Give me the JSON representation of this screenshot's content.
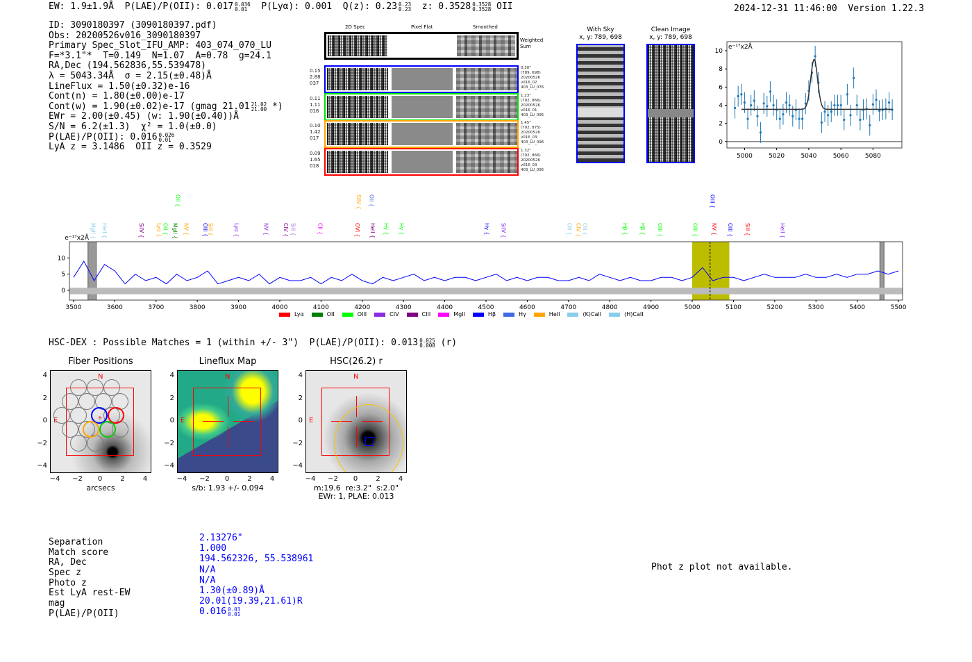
{
  "header": {
    "ew": "EW: 1.9±1.9Å",
    "plae_label": "P(LAE)/P(OII): 0.017",
    "plae_hi": "0.036",
    "plae_lo": "0.01",
    "plya": "P(Lyα): 0.001",
    "qz_label": "Q(z): 0.23",
    "qz_hi": "0.23",
    "qz_lo": "0.23",
    "z_label": "z: 0.3528",
    "z_hi": "0.3528",
    "z_lo": "0.3528",
    "z_line": "OII",
    "datetime": "2024-12-31 11:46:00",
    "version": "Version 1.22.3"
  },
  "info": {
    "lines": [
      "ID: 3090180397 (3090180397.pdf)",
      "Obs: 20200526v016_3090180397",
      "Primary Spec_Slot_IFU_AMP: 403_074_070_LU",
      "F=*3.1\"*  T=0.149  N=1.07  A=0.78  g=24.1",
      "RA,Dec (194.562836,55.539478)",
      "λ = 5043.34Å  σ = 2.15(±0.48)Å",
      "LineFlux = 1.50(±0.32)e-16",
      "Cont(n) = 1.80(±0.00)e-17"
    ],
    "contw": "Cont(w) = 1.90(±0.02)e-17 (gmag 21.01",
    "contw_hi": "21.02",
    "contw_lo": "21.00",
    "contw_end": " *)",
    "ewr": "EWr = 2.00(±0.45) (w: 1.90(±0.40))Å",
    "sn": "S/N = 6.2(±1.3)  χ² = 1.0(±0.0)",
    "plae": "P(LAE)/P(OII): 0.016",
    "plae_hi": "0.026",
    "plae_lo": "0.01",
    "z": "LyA z = 3.1486  OII z = 0.3529"
  },
  "spec2d": {
    "col_titles": [
      "2D Spec",
      "Pixel Flat",
      "Smoothed"
    ],
    "weighted_label": "Weighted\nSum",
    "fibers": [
      {
        "color": "#0000ff",
        "stats": "0.15\n2.88\n037",
        "meta": "0.30\"\n(789, 698)\n20200526\nv016_02\n403_LU_076"
      },
      {
        "color": "#00e000",
        "stats": "0.11\n1.11\n018",
        "meta": "1.23\"\n(792, 866)\n20200526\nv016_01\n403_LU_095"
      },
      {
        "color": "#ffa500",
        "stats": "0.10\n1.42\n017",
        "meta": "1.45\"\n(792, 875)\n20200526\nv016_03\n403_LU_096"
      },
      {
        "color": "#ff0000",
        "stats": "0.09\n1.65\n018",
        "meta": "1.32\"\n(792, 866)\n20200526\nv016_03\n403_LU_095"
      }
    ]
  },
  "cutouts": {
    "with_sky": {
      "title": "With Sky",
      "coords": "x, y: 789, 698"
    },
    "clean": {
      "title": "Clean Image",
      "coords": "x, y: 789, 698"
    }
  },
  "hsc": {
    "title": "HSC-DEX : Possible Matches = 1 (within +/- 3\")  P(LAE)/P(OII): 0.013",
    "hi": "0.025",
    "lo": "0.008",
    "band": "(r)",
    "ticks": [
      "−4",
      "−2",
      "0",
      "2",
      "4"
    ],
    "n_label": "N",
    "e_label": "E",
    "panels": [
      {
        "title": "Fiber Positions",
        "caption": "arcsecs"
      },
      {
        "title": "Lineflux Map",
        "caption": "s/b: 1.93 +/- 0.094"
      },
      {
        "title": "HSC(26.2) r",
        "caption": "m:19.6  re:3.2\"  s:2.0\"\nEWr: 1, PLAE: 0.013"
      }
    ]
  },
  "match": {
    "labels": [
      "Separation",
      "Match score",
      "RA, Dec",
      "Spec z",
      "Photo z",
      "Est LyA rest-EW",
      "mag",
      "P(LAE)/P(OII)"
    ],
    "values": [
      "2.13276\"",
      "1.000",
      "194.562326, 55.538961",
      "N/A",
      "N/A",
      "1.30(±0.89)Å",
      "20.01(19.39,21.61)R",
      "0.016"
    ],
    "plae_hi": "0.03",
    "plae_lo": "0.01",
    "photz_note": "Phot z plot not available."
  },
  "chart_data": [
    {
      "type": "scatter",
      "title": "",
      "units_label": "e⁻¹⁷x2Å",
      "xlabel": "",
      "ylabel": "",
      "xlim": [
        4989,
        5098
      ],
      "ylim": [
        -0.7,
        11
      ],
      "xticks": [
        5000,
        5020,
        5040,
        5060,
        5080
      ],
      "yticks": [
        0,
        2,
        4,
        6,
        8,
        10
      ],
      "x": [
        4994,
        4996,
        4998,
        5000,
        5002,
        5004,
        5006,
        5008,
        5010,
        5012,
        5014,
        5016,
        5018,
        5020,
        5022,
        5024,
        5026,
        5028,
        5030,
        5032,
        5034,
        5036,
        5038,
        5040,
        5042,
        5044,
        5046,
        5048,
        5050,
        5052,
        5054,
        5056,
        5058,
        5060,
        5062,
        5064,
        5066,
        5068,
        5070,
        5072,
        5074,
        5076,
        5078,
        5080,
        5082,
        5084,
        5086,
        5088,
        5090,
        5092
      ],
      "y": [
        3.7,
        5.0,
        5.2,
        4.3,
        2.5,
        4.0,
        4.5,
        2.8,
        1.0,
        4.2,
        3.9,
        5.5,
        4.0,
        3.5,
        2.5,
        3.0,
        4.3,
        4.0,
        2.8,
        3.5,
        2.5,
        2.5,
        4.2,
        5.6,
        7.6,
        9.4,
        6.5,
        2.1,
        3.3,
        2.9,
        3.3,
        4.0,
        4.0,
        4.0,
        2.4,
        5.2,
        2.9,
        7.0,
        4.0,
        2.4,
        3.5,
        3.6,
        1.8,
        4.1,
        4.6,
        3.4,
        3.5,
        3.6,
        4.3,
        3.5
      ],
      "yerr": 1.15,
      "fit": {
        "continuum": 3.55,
        "center": 5043.34,
        "sigma": 2.15,
        "peak": 9.05,
        "range": [
          4998,
          5092
        ]
      }
    },
    {
      "type": "line",
      "title": "",
      "units_label": "e⁻¹⁷x2Å",
      "xlim": [
        3490,
        5510
      ],
      "ylim": [
        -3,
        15
      ],
      "xticks": [
        3500,
        3600,
        3700,
        3800,
        3900,
        4000,
        4100,
        4200,
        4300,
        4400,
        4500,
        4600,
        4700,
        4800,
        4900,
        5000,
        5100,
        5200,
        5300,
        5400,
        5500
      ],
      "yticks": [
        0,
        5,
        10
      ],
      "x_start": 3500,
      "x_step": 25,
      "flux": [
        4,
        9,
        3,
        8,
        6,
        2,
        5,
        3,
        4,
        2,
        5,
        3,
        4,
        6,
        2,
        3,
        4,
        3,
        5,
        2,
        4,
        3,
        3,
        4,
        2,
        4,
        3,
        5,
        3,
        2,
        4,
        3,
        4,
        5,
        3,
        4,
        3,
        4,
        4,
        3,
        4,
        5,
        3,
        4,
        3,
        4,
        4,
        3,
        3,
        4,
        3,
        5,
        4,
        3,
        4,
        3,
        3,
        4,
        4,
        3,
        4,
        7,
        3,
        4,
        4,
        3,
        4,
        5,
        4,
        4,
        4,
        5,
        4,
        4,
        5,
        4,
        5,
        5,
        6,
        5,
        6
      ],
      "highlight_band": [
        5000,
        5090
      ],
      "line_marker": 5043.34,
      "masked": [
        [
          3535,
          3555
        ],
        [
          5455,
          5465
        ]
      ],
      "legend": [
        {
          "label": "Lyα",
          "color": "#ff0000"
        },
        {
          "label": "OII",
          "color": "#008000"
        },
        {
          "label": "OIII",
          "color": "#00ff00"
        },
        {
          "label": "CIV",
          "color": "#8a2be2"
        },
        {
          "label": "CIII",
          "color": "#800080"
        },
        {
          "label": "MgII",
          "color": "#ff00ff"
        },
        {
          "label": "Hβ",
          "color": "#0000ff"
        },
        {
          "label": "Hγ",
          "color": "#4169e1"
        },
        {
          "label": "HeII",
          "color": "#ffa500"
        },
        {
          "label": "(K)CaII",
          "color": "#87ceeb"
        },
        {
          "label": "(H)CaII",
          "color": "#87ceeb"
        }
      ],
      "line_labels": [
        {
          "label": "MgII",
          "wave": 3547,
          "color": "#87ceeb",
          "row": 0
        },
        {
          "label": "HeII",
          "wave": 3575,
          "color": "#87ceeb",
          "row": 0
        },
        {
          "label": "SiIV",
          "wave": 3664,
          "color": "#800080",
          "row": 0
        },
        {
          "label": "Lyα",
          "wave": 3707,
          "color": "#ffa500",
          "row": 0
        },
        {
          "label": "OII",
          "wave": 3722,
          "color": "#00ff00",
          "row": 0
        },
        {
          "label": "MgII",
          "wave": 3746,
          "color": "#008000",
          "row": 0
        },
        {
          "label": "OII",
          "wave": 3753,
          "color": "#00ff00",
          "row": 1
        },
        {
          "label": "NV",
          "wave": 3773,
          "color": "#ffa500",
          "row": 0
        },
        {
          "label": "OIII",
          "wave": 3819,
          "color": "#0000ff",
          "row": 0
        },
        {
          "label": "SiII",
          "wave": 3832,
          "color": "#ffa500",
          "row": 0
        },
        {
          "label": "Lyα",
          "wave": 3895,
          "color": "#8a2be2",
          "row": 0
        },
        {
          "label": "NV",
          "wave": 3966,
          "color": "#8a2be2",
          "row": 0
        },
        {
          "label": "CIV",
          "wave": 4014,
          "color": "#800080",
          "row": 0
        },
        {
          "label": "SiII",
          "wave": 4032,
          "color": "#b070f0",
          "row": 0
        },
        {
          "label": "CII",
          "wave": 4098,
          "color": "#ff00ff",
          "row": 0
        },
        {
          "label": "OVI",
          "wave": 4188,
          "color": "#ff0000",
          "row": 0
        },
        {
          "label": "SiIV",
          "wave": 4191,
          "color": "#ffa500",
          "row": 1
        },
        {
          "label": "OII",
          "wave": 4222,
          "color": "#4169e1",
          "row": 1
        },
        {
          "label": "HeII",
          "wave": 4225,
          "color": "#800080",
          "row": 0
        },
        {
          "label": "Hγ",
          "wave": 4258,
          "color": "#00ff00",
          "row": 0
        },
        {
          "label": "Hγ",
          "wave": 4295,
          "color": "#00ff00",
          "row": 0
        },
        {
          "label": "Hγ",
          "wave": 4502,
          "color": "#0000ff",
          "row": 0
        },
        {
          "label": "SiIV",
          "wave": 4542,
          "color": "#8a2be2",
          "row": 0
        },
        {
          "label": "OII",
          "wave": 4702,
          "color": "#87ceeb",
          "row": 0
        },
        {
          "label": "CIV",
          "wave": 4724,
          "color": "#ffa500",
          "row": 0
        },
        {
          "label": "OII",
          "wave": 4739,
          "color": "#87ceeb",
          "row": 0
        },
        {
          "label": "Hβ",
          "wave": 4837,
          "color": "#00ff00",
          "row": 0
        },
        {
          "label": "Hβ",
          "wave": 4880,
          "color": "#00ff00",
          "row": 0
        },
        {
          "label": "OIII",
          "wave": 4922,
          "color": "#00ff00",
          "row": 0
        },
        {
          "label": "OIII",
          "wave": 5007,
          "color": "#00ff00",
          "row": 0
        },
        {
          "label": "OIII",
          "wave": 5049,
          "color": "#0000ff",
          "row": 1
        },
        {
          "label": "NV",
          "wave": 5053,
          "color": "#ff0000",
          "row": 0
        },
        {
          "label": "OIII",
          "wave": 5092,
          "color": "#0000ff",
          "row": 0
        },
        {
          "label": "SiII",
          "wave": 5134,
          "color": "#ff0000",
          "row": 0
        },
        {
          "label": "HeII",
          "wave": 5219,
          "color": "#8a2be2",
          "row": 0
        }
      ]
    }
  ]
}
